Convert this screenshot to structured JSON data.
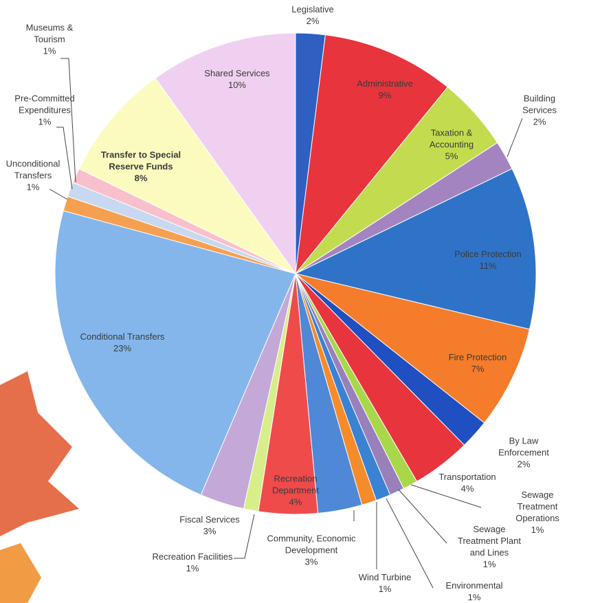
{
  "chart_data": {
    "type": "pie",
    "categories": [
      "Legislative",
      "Administrative",
      "Taxation &\nAccounting",
      "Building Services",
      "Police Protection",
      "Fire Protection",
      "By Law Enforcement",
      "Transportation",
      "Sewage Treatment\nOperations",
      "Sewage\nTreatment Plant\nand Lines",
      "Environmental",
      "Wind Turbine",
      "Community, Economic\nDevelopment",
      "Recreation\nDepartment",
      "Recreation Facilities",
      "Fiscal Services",
      "Conditional Transfers",
      "Unconditional\nTransfers",
      "Pre-Committed\nExpenditures",
      "Museums &\nTourism",
      "Transfer to Special\nReserve Funds",
      "Shared Services"
    ],
    "values": [
      2,
      9,
      5,
      2,
      11,
      7,
      2,
      4,
      1,
      1,
      1,
      1,
      3,
      4,
      1,
      3,
      23,
      1,
      1,
      1,
      8,
      10
    ],
    "value_labels": [
      "2%",
      "9%",
      "5%",
      "2%",
      "11%",
      "7%",
      "2%",
      "4%",
      "1%",
      "1%",
      "1%",
      "1%",
      "3%",
      "4%",
      "1%",
      "3%",
      "23%",
      "1%",
      "1%",
      "1%",
      "8%",
      "10%"
    ],
    "colors": [
      "#2e5fc1",
      "#e8343c",
      "#c3dc4f",
      "#a484c0",
      "#2f73c8",
      "#f57c2a",
      "#1f4fc0",
      "#e8343c",
      "#a8d84a",
      "#9a80bb",
      "#3a82d4",
      "#f58b2a",
      "#4f88d6",
      "#ef4b4b",
      "#d8ee8a",
      "#c4a8d8",
      "#84b6ec",
      "#f5a050",
      "#c8d8f0",
      "#f7c0cc",
      "#fbfbc0",
      "#f0d0f0"
    ]
  }
}
